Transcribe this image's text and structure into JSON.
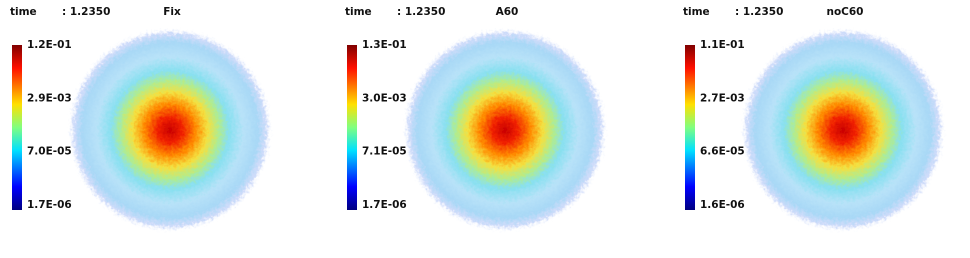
{
  "panels": [
    {
      "time_label": "time",
      "time_value": ": 1.2350",
      "title": "Fix",
      "colorbar": [
        "1.2E-01",
        "2.9E-03",
        "7.0E-05",
        "1.7E-06"
      ]
    },
    {
      "time_label": "time",
      "time_value": ": 1.2350",
      "title": "A60",
      "colorbar": [
        "1.3E-01",
        "3.0E-03",
        "7.1E-05",
        "1.7E-06"
      ]
    },
    {
      "time_label": "time",
      "time_value": ": 1.2350",
      "title": "noC60",
      "colorbar": [
        "1.1E-01",
        "2.7E-03",
        "6.6E-05",
        "1.6E-06"
      ]
    }
  ]
}
